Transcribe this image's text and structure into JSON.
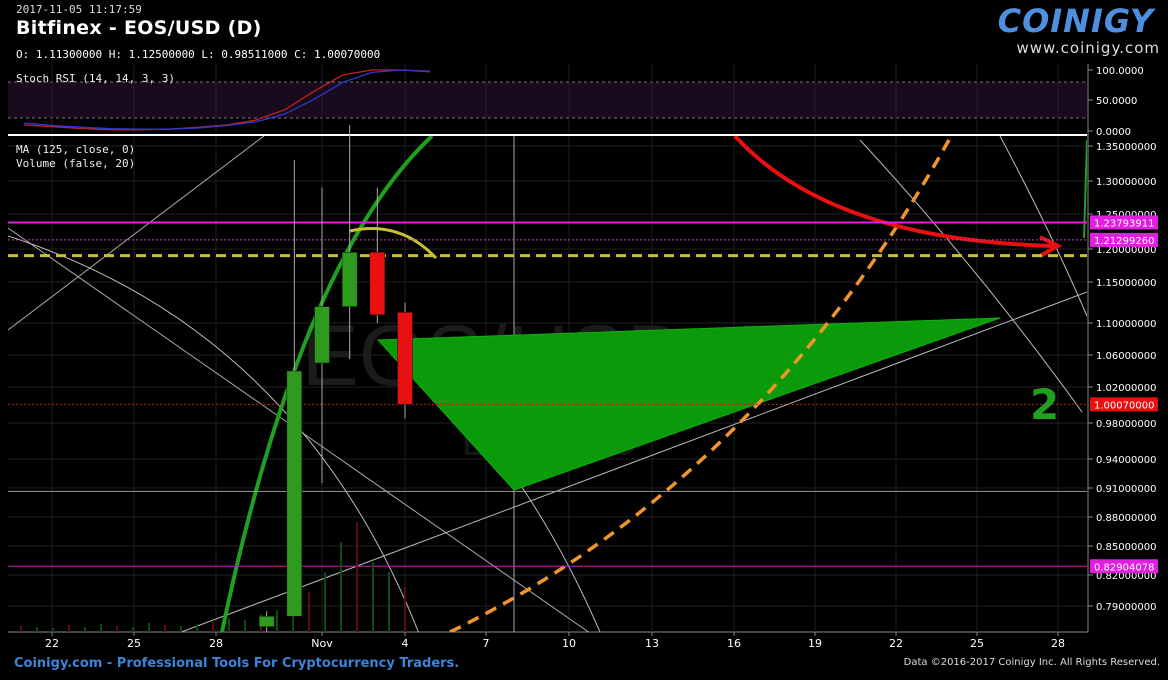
{
  "header": {
    "datetime": "2017-11-05 11:17:59",
    "title": "Bitfinex - EOS/USD (D)",
    "ohlc": "O: 1.11300000 H: 1.12500000 L: 0.98511000 C: 1.00070000"
  },
  "logo": {
    "brand": "COINIGY",
    "url": "www.coinigy.com"
  },
  "indicators": {
    "stoch": "Stoch RSI (14, 14, 3, 3)",
    "ma": "MA (125, close, 0)",
    "volume": "Volume (false, 20)"
  },
  "annotation_number": "2",
  "footer": {
    "left": "Coinigy.com - Professional Tools For Cryptocurrency Traders.",
    "right": "Data ©2016-2017 Coinigy Inc. All Rights Reserved."
  },
  "colors": {
    "up": "#2e9b1e",
    "down": "#e81010",
    "magenta": "#e020e0",
    "trend": "#1fa01f",
    "orange": "#f0952a",
    "yellow": "#c8c030",
    "arrow": "#e81010"
  },
  "chart_data": [
    {
      "type": "line",
      "name": "Stoch RSI (14, 14, 3, 3)",
      "ylim": [
        0,
        100
      ],
      "yticks": [
        "100.0000",
        "50.0000",
        "0.0000"
      ],
      "levels": [
        80,
        20
      ],
      "series": [
        {
          "values": [
            10,
            7,
            4,
            2,
            2,
            3,
            6,
            10,
            18,
            35,
            65,
            92,
            100,
            100,
            97
          ]
        },
        {
          "values": [
            13,
            9,
            6,
            4,
            3,
            3,
            5,
            9,
            15,
            28,
            52,
            80,
            96,
            100,
            98
          ]
        }
      ]
    },
    {
      "type": "candlestick",
      "ylim": [
        0.765,
        1.365
      ],
      "yticks": [
        "1.35000000",
        "1.30000000",
        "1.25000000",
        "1.20000000",
        "1.15000000",
        "1.10000000",
        "1.06000000",
        "1.02000000",
        "0.98000000",
        "0.94000000",
        "0.91000000",
        "0.88000000",
        "0.85000000",
        "0.82000000",
        "0.79000000"
      ],
      "xticks": [
        "22",
        "25",
        "28",
        "Nov",
        "4",
        "7",
        "10",
        "13",
        "16",
        "19",
        "22",
        "25",
        "28"
      ],
      "candles": [
        {
          "date": "Oct 30",
          "open": 0.77,
          "high": 0.785,
          "low": 0.765,
          "close": 0.78
        },
        {
          "date": "Oct 31",
          "open": 0.78,
          "high": 1.33,
          "low": 0.78,
          "close": 1.04
        },
        {
          "date": "Nov 1",
          "open": 1.05,
          "high": 1.29,
          "low": 0.915,
          "close": 1.12
        },
        {
          "date": "Nov 2",
          "open": 1.12,
          "high": 1.38,
          "low": 1.055,
          "close": 1.195
        },
        {
          "date": "Nov 3",
          "open": 1.195,
          "high": 1.29,
          "low": 1.1,
          "close": 1.11
        },
        {
          "date": "Nov 4",
          "open": 1.113,
          "high": 1.125,
          "low": 0.98511,
          "close": 1.0007
        }
      ],
      "price_labels": [
        {
          "value": 1.23793911,
          "text": "1.23793911",
          "color": "#e020e0"
        },
        {
          "value": 1.2129926,
          "text": "1.21299260",
          "color": "#e020e0"
        },
        {
          "value": 1.0007,
          "text": "1.00070000",
          "color": "#e81010"
        },
        {
          "value": 0.82904078,
          "text": "0.82904078",
          "color": "#e020e0"
        }
      ],
      "horizontal_lines": [
        1.2379,
        1.213,
        1.19,
        1.0007,
        0.9065,
        0.829
      ]
    }
  ]
}
